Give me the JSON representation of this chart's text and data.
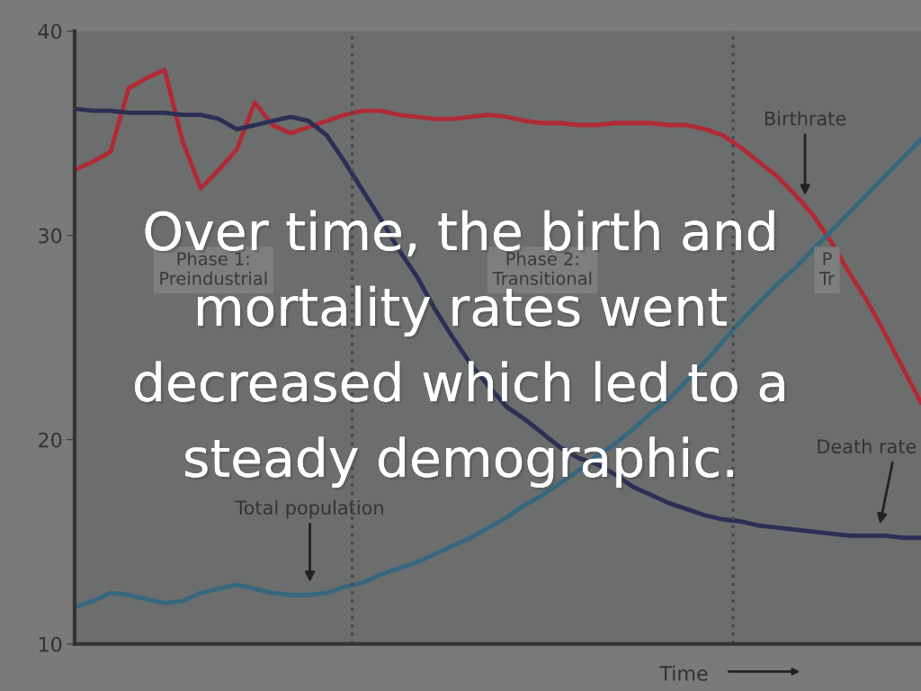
{
  "chart_data": {
    "type": "line",
    "title": "Over time, the birth and\nmortality rates went\ndecreased which led to a\nsteady demographic.",
    "xlabel": "Time",
    "categories": [
      null,
      null,
      null,
      null,
      null,
      null,
      null,
      null,
      null,
      null,
      null,
      null,
      null,
      null,
      null,
      null,
      null,
      null,
      null,
      null,
      null,
      null,
      null,
      null,
      null,
      null,
      null,
      null,
      null,
      null,
      null,
      null,
      null,
      null,
      null,
      null,
      null,
      null,
      null,
      null,
      null,
      null,
      null,
      null,
      null,
      null,
      null,
      null
    ],
    "ylim": [
      10,
      40
    ],
    "yticks": [
      10,
      20,
      30,
      40
    ],
    "tick_labels": "y",
    "grid": false,
    "legend": false,
    "series": [
      {
        "color": "#b02a36",
        "values": [
          33.2,
          33.6,
          34.1,
          37.2,
          37.7,
          38.1,
          34.6,
          32.3,
          33.2,
          34.2,
          36.5,
          35.4,
          35.0,
          35.3,
          35.6,
          35.9,
          36.1,
          36.1,
          35.9,
          35.8,
          35.7,
          35.7,
          35.8,
          35.9,
          35.8,
          35.6,
          35.5,
          35.5,
          35.4,
          35.4,
          35.5,
          35.5,
          35.5,
          35.4,
          35.4,
          35.2,
          34.9,
          34.3,
          33.6,
          32.9,
          32.0,
          31.0,
          29.7,
          28.2,
          26.8,
          25.2,
          23.5,
          21.8
        ]
      },
      {
        "color": "#2b2f55",
        "values": [
          36.2,
          36.1,
          36.1,
          36.0,
          36.0,
          36.0,
          35.9,
          35.9,
          35.7,
          35.2,
          35.4,
          35.6,
          35.8,
          35.6,
          34.9,
          33.6,
          32.2,
          30.8,
          29.3,
          28.0,
          26.4,
          25.0,
          23.7,
          22.6,
          21.6,
          21.0,
          20.3,
          19.6,
          19.1,
          18.8,
          18.3,
          17.7,
          17.3,
          16.9,
          16.6,
          16.3,
          16.1,
          16.0,
          15.8,
          15.7,
          15.6,
          15.5,
          15.4,
          15.3,
          15.3,
          15.3,
          15.2,
          15.2
        ]
      },
      {
        "color": "#36677f",
        "values": [
          11.8,
          12.1,
          12.5,
          12.4,
          12.2,
          12.0,
          12.1,
          12.5,
          12.7,
          12.9,
          12.7,
          12.5,
          12.4,
          12.4,
          12.5,
          12.8,
          13.0,
          13.4,
          13.7,
          14.0,
          14.4,
          14.8,
          15.2,
          15.7,
          16.2,
          16.8,
          17.3,
          17.9,
          18.5,
          19.2,
          19.8,
          20.5,
          21.3,
          22.0,
          22.9,
          23.8,
          24.8,
          25.8,
          26.7,
          27.6,
          28.4,
          29.3,
          30.2,
          31.1,
          32.0,
          32.9,
          33.8,
          34.7
        ]
      }
    ],
    "annotations": [
      "Phase 1:\nPreindustrial",
      "Phase 2:\nTransitional",
      "P\nTr",
      "Birthrate",
      "Total population",
      "Death rate"
    ]
  }
}
